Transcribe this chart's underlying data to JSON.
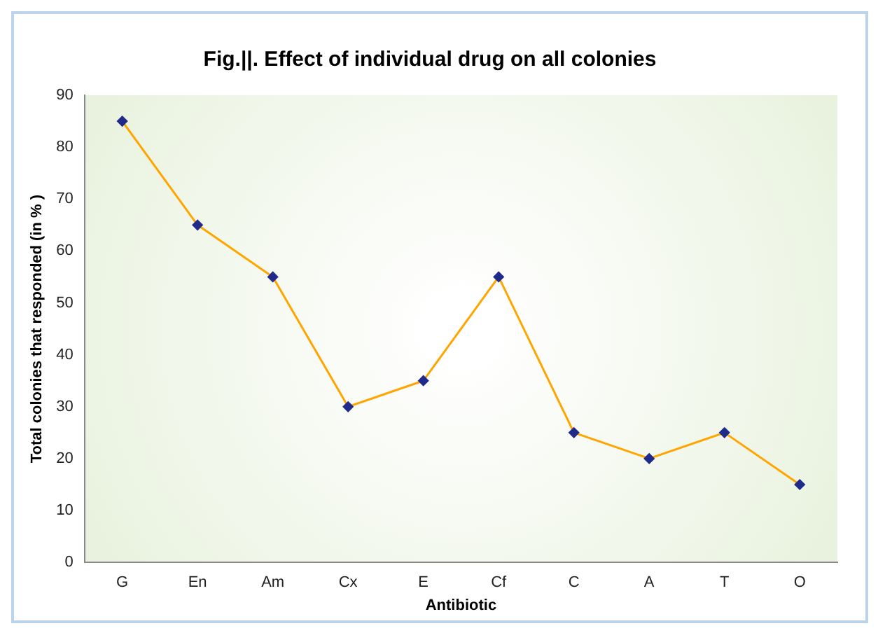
{
  "chart_data": {
    "type": "line",
    "title": "Fig.||. Effect of individual drug on all colonies",
    "xlabel": "Antibiotic",
    "ylabel": "Total colonies that responded (in % )",
    "categories": [
      "G",
      "En",
      "Am",
      "Cx",
      "E",
      "Cf",
      "C",
      "A",
      "T",
      "O"
    ],
    "series": [
      {
        "color": "#ffa500",
        "values": [
          85,
          65,
          55,
          30,
          35,
          55,
          25,
          20,
          25,
          15
        ]
      }
    ],
    "ylim": [
      0,
      90
    ],
    "yticks": [
      0,
      10,
      20,
      30,
      40,
      50,
      60,
      70,
      80,
      90
    ],
    "grid": false,
    "legend": false,
    "marker": "diamond",
    "line_style": "solid"
  }
}
